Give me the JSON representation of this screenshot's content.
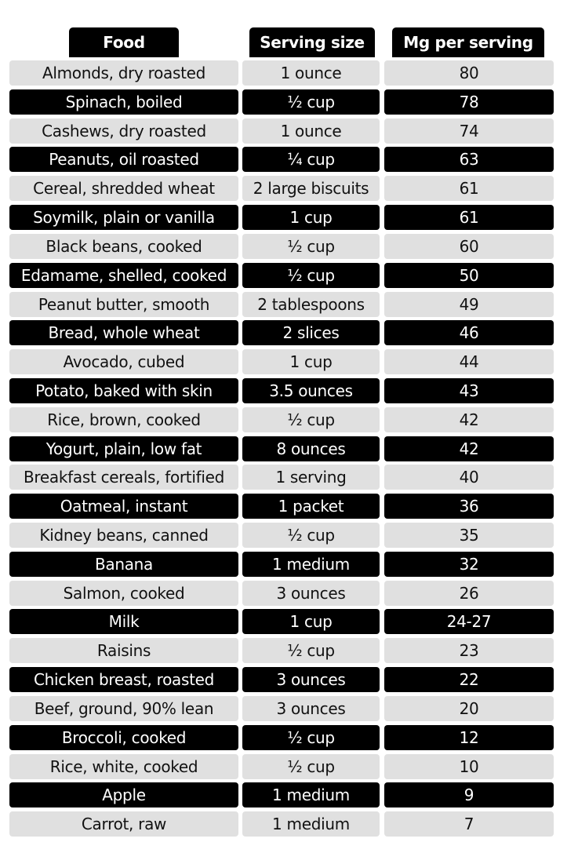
{
  "table": {
    "header": [
      "Food",
      "Serving size",
      "Mg per serving"
    ],
    "rows": [
      [
        "Almonds, dry roasted",
        "1 ounce",
        80
      ],
      [
        "Spinach, boiled",
        "½ cup",
        78
      ],
      [
        "Cashews, dry roasted",
        "1 ounce",
        74
      ],
      [
        "Peanuts, oil roasted",
        "¼ cup",
        63
      ],
      [
        "Cereal, shredded wheat",
        "2 large biscuits",
        61
      ],
      [
        "Soymilk, plain or vanilla",
        "1 cup",
        61
      ],
      [
        "Black beans, cooked",
        "½ cup",
        60
      ],
      [
        "Edamame, shelled, cooked",
        "½ cup",
        50
      ],
      [
        "Peanut butter, smooth",
        "2 tablespoons",
        49
      ],
      [
        "Bread, whole wheat",
        "2 slices",
        46
      ],
      [
        "Avocado, cubed",
        "1 cup",
        44
      ],
      [
        "Potato, baked with skin",
        "3.5 ounces",
        43
      ],
      [
        "Rice, brown, cooked",
        "½ cup",
        42
      ],
      [
        "Yogurt, plain, low fat",
        "8 ounces",
        42
      ],
      [
        "Breakfast cereals, fortified",
        "1 serving",
        40
      ],
      [
        "Oatmeal, instant",
        "1 packet",
        36
      ],
      [
        "Kidney beans, canned",
        "½ cup",
        35
      ],
      [
        "Banana",
        "1 medium",
        32
      ],
      [
        "Salmon, cooked",
        "3 ounces",
        26
      ],
      [
        "Milk",
        "1 cup",
        "24-27"
      ],
      [
        "Raisins",
        "½ cup",
        23
      ],
      [
        "Chicken breast, roasted",
        "3 ounces",
        22
      ],
      [
        "Beef, ground, 90% lean",
        "3 ounces",
        20
      ],
      [
        "Broccoli, cooked",
        "½ cup",
        12
      ],
      [
        "Rice, white, cooked",
        "½ cup",
        10
      ],
      [
        "Apple",
        "1 medium",
        9
      ],
      [
        "Carrot, raw",
        "1 medium",
        7
      ]
    ]
  }
}
